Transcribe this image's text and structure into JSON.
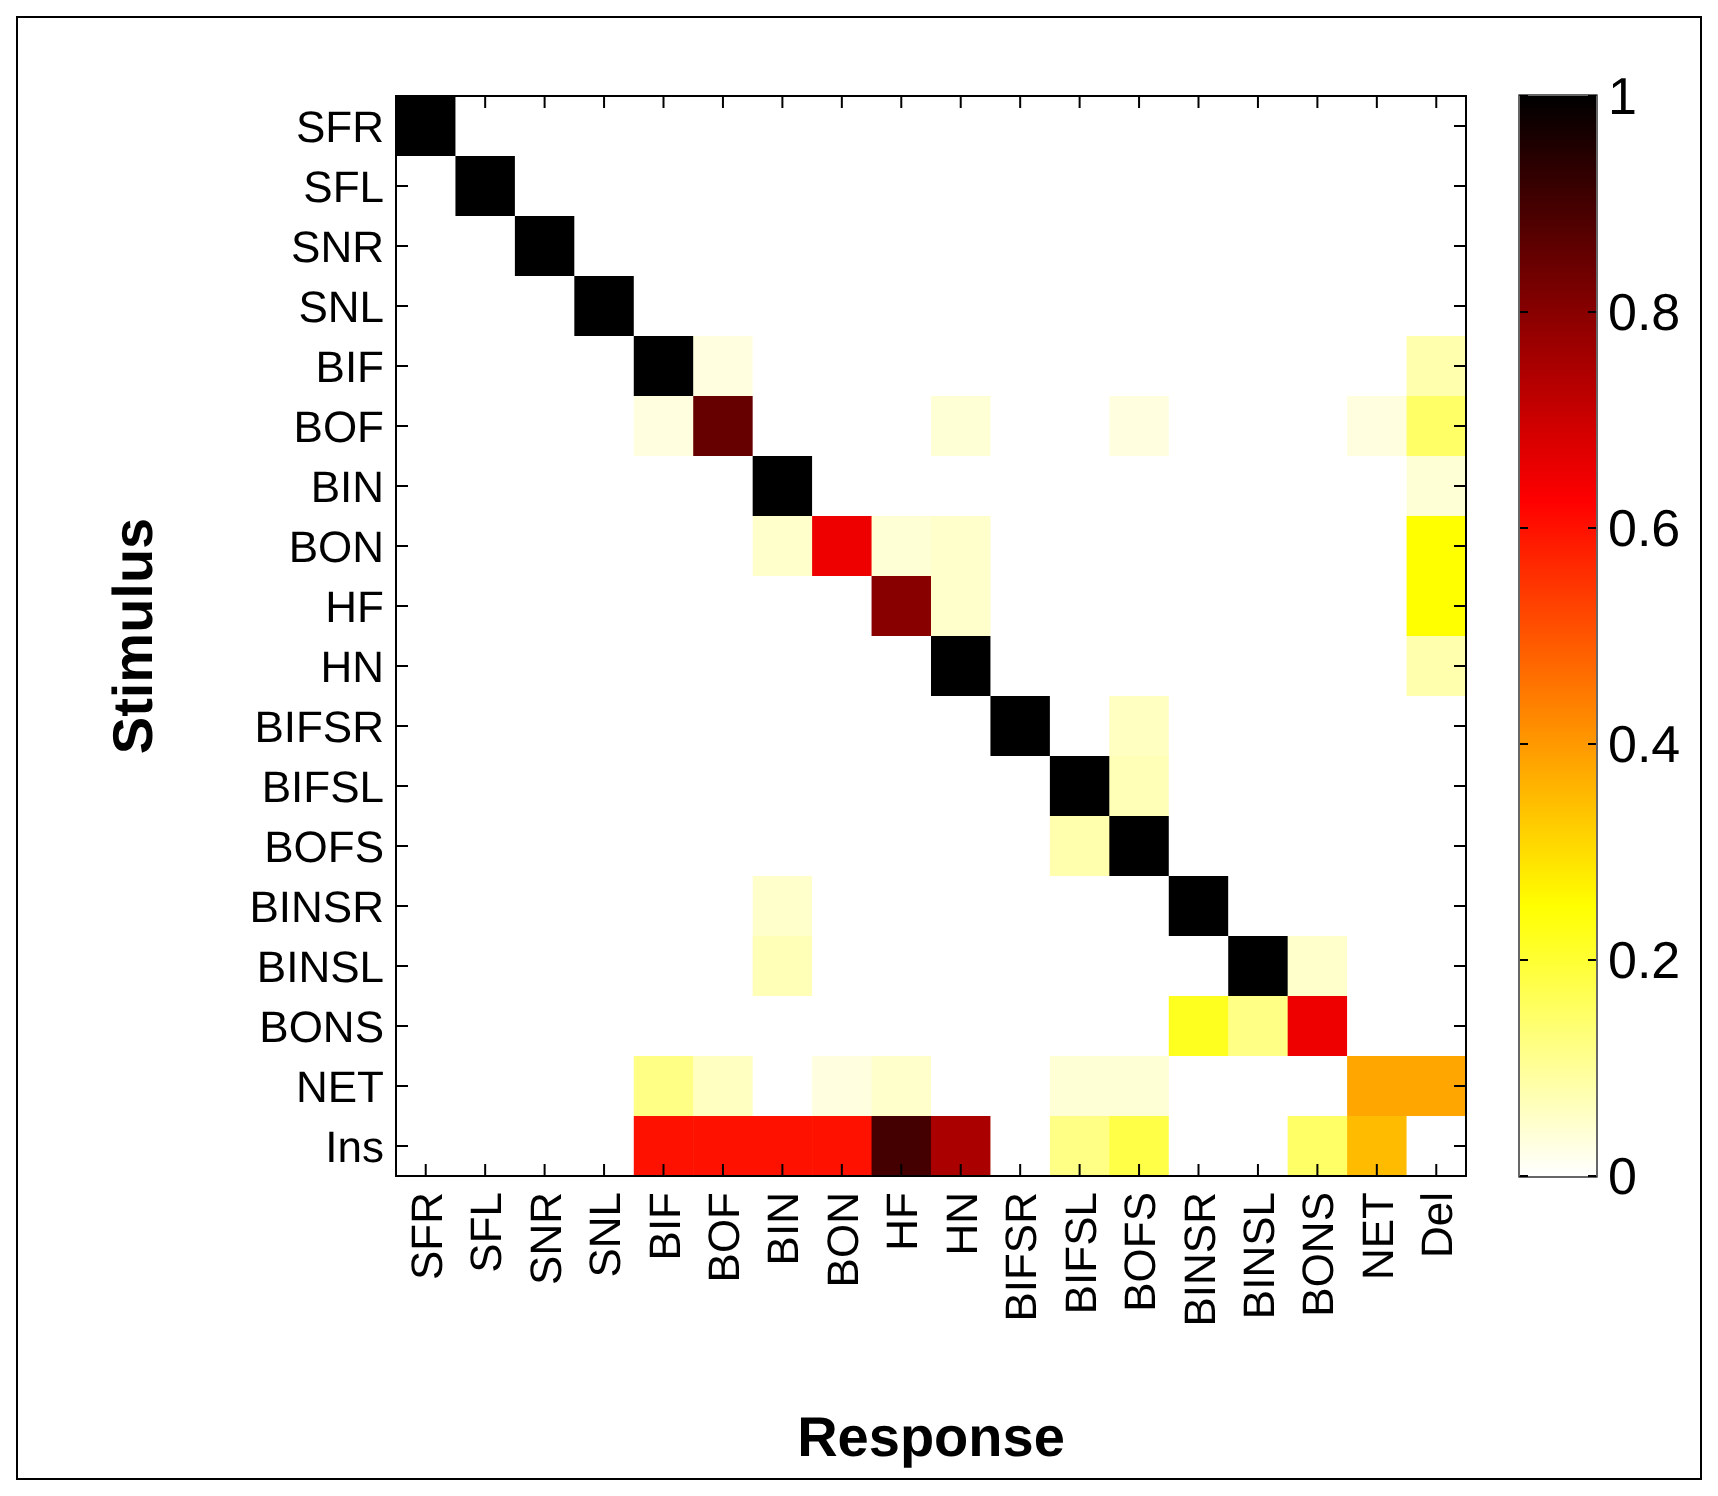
{
  "chart_data": {
    "type": "heatmap",
    "xlabel": "Response",
    "ylabel": "Stimulus",
    "categories": [
      "SFR",
      "SFL",
      "SNR",
      "SNL",
      "BIF",
      "BOF",
      "BIN",
      "BON",
      "HF",
      "HN",
      "BIFSR",
      "BIFSL",
      "BOFS",
      "BINSR",
      "BINSL",
      "BONS",
      "NET",
      "Del"
    ],
    "y_categories": [
      "SFR",
      "SFL",
      "SNR",
      "SNL",
      "BIF",
      "BOF",
      "BIN",
      "BON",
      "HF",
      "HN",
      "BIFSR",
      "BIFSL",
      "BOFS",
      "BINSR",
      "BINSL",
      "BONS",
      "NET",
      "Ins"
    ],
    "cells": [
      [
        1,
        0,
        0,
        0,
        0,
        0,
        0,
        0,
        0,
        0,
        0,
        0,
        0,
        0,
        0,
        0,
        0,
        0
      ],
      [
        0,
        1,
        0,
        0,
        0,
        0,
        0,
        0,
        0,
        0,
        0,
        0,
        0,
        0,
        0,
        0,
        0,
        0
      ],
      [
        0,
        0,
        1,
        0,
        0,
        0,
        0,
        0,
        0,
        0,
        0,
        0,
        0,
        0,
        0,
        0,
        0,
        0
      ],
      [
        0,
        0,
        0,
        1,
        0,
        0,
        0,
        0,
        0,
        0,
        0,
        0,
        0,
        0,
        0,
        0,
        0,
        0
      ],
      [
        0,
        0,
        0,
        0,
        1,
        0.03,
        0,
        0,
        0,
        0,
        0,
        0,
        0,
        0,
        0,
        0,
        0,
        0.08
      ],
      [
        0,
        0,
        0,
        0,
        0.03,
        0.85,
        0,
        0,
        0,
        0.04,
        0,
        0,
        0.03,
        0,
        0,
        0,
        0.03,
        0.15
      ],
      [
        0,
        0,
        0,
        0,
        0,
        0,
        1,
        0,
        0,
        0,
        0,
        0,
        0,
        0,
        0,
        0,
        0,
        0.04
      ],
      [
        0,
        0,
        0,
        0,
        0,
        0,
        0.05,
        0.65,
        0.04,
        0.05,
        0,
        0,
        0,
        0,
        0,
        0,
        0,
        0.25
      ],
      [
        0,
        0,
        0,
        0,
        0,
        0,
        0,
        0,
        0.8,
        0.05,
        0,
        0,
        0,
        0,
        0,
        0,
        0,
        0.25
      ],
      [
        0,
        0,
        0,
        0,
        0,
        0,
        0,
        0,
        0,
        1,
        0,
        0,
        0,
        0,
        0,
        0,
        0,
        0.08
      ],
      [
        0,
        0,
        0,
        0,
        0,
        0,
        0,
        0,
        0,
        0,
        1,
        0,
        0.06,
        0,
        0,
        0,
        0,
        0
      ],
      [
        0,
        0,
        0,
        0,
        0,
        0,
        0,
        0,
        0,
        0,
        0,
        1,
        0.07,
        0,
        0,
        0,
        0,
        0
      ],
      [
        0,
        0,
        0,
        0,
        0,
        0,
        0,
        0,
        0,
        0,
        0,
        0.08,
        1,
        0,
        0,
        0,
        0,
        0
      ],
      [
        0,
        0,
        0,
        0,
        0,
        0,
        0.05,
        0,
        0,
        0,
        0,
        0,
        0,
        1,
        0,
        0,
        0,
        0
      ],
      [
        0,
        0,
        0,
        0,
        0,
        0,
        0.07,
        0,
        0,
        0,
        0,
        0,
        0,
        0,
        1,
        0.05,
        0,
        0
      ],
      [
        0,
        0,
        0,
        0,
        0,
        0,
        0,
        0,
        0,
        0,
        0,
        0,
        0,
        0.22,
        0.12,
        0.65,
        0,
        0
      ],
      [
        0,
        0,
        0,
        0,
        0.12,
        0.06,
        0,
        0.03,
        0.05,
        0,
        0,
        0.04,
        0.04,
        0,
        0,
        0,
        0.38,
        0.38
      ],
      [
        0,
        0,
        0,
        0,
        0.6,
        0.6,
        0.6,
        0.6,
        0.9,
        0.75,
        0,
        0.12,
        0.18,
        0,
        0,
        0.15,
        0.35,
        0
      ]
    ],
    "clim": [
      0,
      1
    ],
    "cticks": [
      0,
      0.2,
      0.4,
      0.6,
      0.8,
      1
    ]
  }
}
